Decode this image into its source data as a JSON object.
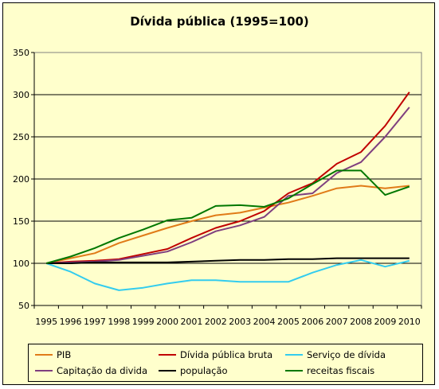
{
  "chart_data": {
    "type": "line",
    "title": "Dívida pública  (1995=100)",
    "x": [
      "1995",
      "1996",
      "1997",
      "1998",
      "1999",
      "2000",
      "2001",
      "2002",
      "2003",
      "2004",
      "2005",
      "2006",
      "2007",
      "2008",
      "2009",
      "2010"
    ],
    "ylim": [
      50,
      350
    ],
    "yticks": [
      "50",
      "100",
      "150",
      "200",
      "250",
      "300",
      "350"
    ],
    "grid": "horizontal",
    "legend_position": "bottom",
    "background": "#ffffcc",
    "series": [
      {
        "name": "PIB",
        "color": "#e07b18",
        "values": [
          100,
          106,
          112,
          124,
          133,
          142,
          150,
          157,
          160,
          166,
          172,
          180,
          189,
          192,
          189,
          192
        ]
      },
      {
        "name": "Dívida pública bruta",
        "color": "#c00000",
        "values": [
          100,
          102,
          103,
          105,
          111,
          117,
          130,
          142,
          150,
          162,
          183,
          195,
          218,
          232,
          263,
          303
        ]
      },
      {
        "name": "Serviço de dívida",
        "color": "#33ccee",
        "values": [
          100,
          90,
          76,
          68,
          71,
          76,
          80,
          80,
          78,
          78,
          78,
          89,
          98,
          104,
          96,
          103
        ]
      },
      {
        "name": "Capitação da divida",
        "color": "#7f3f7f",
        "values": [
          100,
          101,
          102,
          104,
          109,
          114,
          125,
          138,
          145,
          155,
          180,
          183,
          207,
          220,
          250,
          285
        ]
      },
      {
        "name": "população",
        "color": "#000000",
        "values": [
          100,
          100,
          101,
          101,
          101,
          101,
          102,
          103,
          104,
          104,
          105,
          105,
          106,
          106,
          106,
          106
        ]
      },
      {
        "name": "receitas fiscais",
        "color": "#007700",
        "values": [
          100,
          108,
          118,
          130,
          140,
          151,
          154,
          168,
          169,
          167,
          177,
          194,
          210,
          210,
          181,
          191
        ]
      }
    ]
  }
}
